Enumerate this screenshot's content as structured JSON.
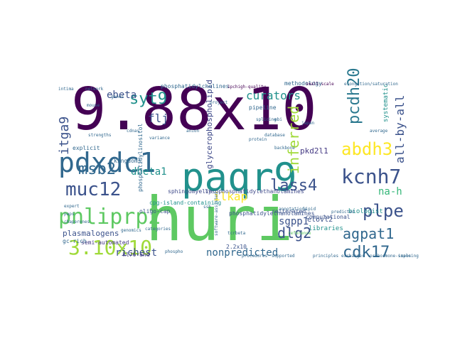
{
  "word_cloud": {
    "words": [
      {
        "text": "9.88x10",
        "color": "#440154"
      },
      {
        "text": "huri",
        "color": "#5ec962"
      },
      {
        "text": "paqr9",
        "color": "#21918c"
      },
      {
        "text": "pdxdc1",
        "color": "#31688e"
      },
      {
        "text": "kcnh7",
        "color": "#3b528b"
      },
      {
        "text": "pnliprp2",
        "color": "#5ec962"
      },
      {
        "text": "abdh3",
        "color": "#fde725"
      },
      {
        "text": "muc12",
        "color": "#3b528b"
      },
      {
        "text": "plpe",
        "color": "#3b528b"
      },
      {
        "text": "agpat1",
        "color": "#31688e"
      },
      {
        "text": "msb2",
        "color": "#31688e"
      },
      {
        "text": "lass4",
        "color": "#3b528b"
      },
      {
        "text": "3.10x10",
        "color": "#a0da39"
      },
      {
        "text": "syt9",
        "color": "#21918c"
      },
      {
        "text": "pcdh20",
        "color": "#2a788e"
      },
      {
        "text": "cdk17",
        "color": "#31688e"
      },
      {
        "text": "all-by-all",
        "color": "#3b528b"
      },
      {
        "text": "curators",
        "color": "#21918c"
      },
      {
        "text": "dlg2",
        "color": "#3b528b"
      },
      {
        "text": "ilkap",
        "color": "#fde725"
      },
      {
        "text": "nonpredicted",
        "color": "#31688e"
      },
      {
        "text": "inferred",
        "color": "#a0da39"
      },
      {
        "text": "richest",
        "color": "#3b528b"
      },
      {
        "text": "dbeta1",
        "color": "#21918c"
      },
      {
        "text": "itga9",
        "color": "#3b528b"
      },
      {
        "text": "ebeta",
        "color": "#3b528b"
      },
      {
        "text": "sgpp1",
        "color": "#3b528b"
      },
      {
        "text": "flj",
        "color": "#3b528b"
      },
      {
        "text": "na-h",
        "color": "#35b779"
      },
      {
        "text": "plasmalogens",
        "color": "#3b528b"
      },
      {
        "text": "glycerophospholipid",
        "color": "#3e4989"
      },
      {
        "text": "pkd2l1",
        "color": "#443983"
      },
      {
        "text": "elovl2",
        "color": "#3b528b"
      },
      {
        "text": "biologist",
        "color": "#21918c"
      },
      {
        "text": "libraries",
        "color": "#21918c"
      },
      {
        "text": "systematic",
        "color": "#21918c"
      },
      {
        "text": "kingdoms",
        "color": "#31688e"
      },
      {
        "text": "explicit",
        "color": "#31688e"
      },
      {
        "text": "oligo-cap",
        "color": "#3b528b"
      },
      {
        "text": "semi-automated",
        "color": "#443983"
      },
      {
        "text": "kl76-and",
        "color": "#443983"
      },
      {
        "text": "2.2x10",
        "color": "#3b528b"
      },
      {
        "text": "reiterated",
        "color": "#3b528b"
      },
      {
        "text": "phosphatidylethanolamines",
        "color": "#3b528b"
      },
      {
        "text": "cpg-island-containing",
        "color": "#21918c"
      },
      {
        "text": "lysophosphatidylethanolamines",
        "color": "#3e4989"
      },
      {
        "text": "phosphatidylinositol",
        "color": "#31688e"
      },
      {
        "text": "computational",
        "color": "#3b528b"
      },
      {
        "text": "sphingomyelin",
        "color": "#3e4989"
      },
      {
        "text": "pipeline",
        "color": "#31688e"
      },
      {
        "text": "methodology",
        "color": "#31688e"
      },
      {
        "text": "elongation/saturation",
        "color": "#31688e"
      },
      {
        "text": "phosphatidylcholines",
        "color": "#31688e"
      },
      {
        "text": "1pchigh-quality",
        "color": "#440154"
      },
      {
        "text": "small-scale",
        "color": "#440154"
      },
      {
        "text": "gc-rich",
        "color": "#31688e"
      },
      {
        "text": "chaperones",
        "color": "#31688e"
      },
      {
        "text": "paps",
        "color": "#31688e"
      },
      {
        "text": "cdnas",
        "color": "#31688e"
      },
      {
        "text": "intima",
        "color": "#31688e"
      },
      {
        "text": "genomics",
        "color": "#31688e"
      },
      {
        "text": "categories",
        "color": "#31688e"
      },
      {
        "text": "procedures",
        "color": "#31688e"
      },
      {
        "text": "supported",
        "color": "#31688e"
      },
      {
        "text": "principles",
        "color": "#31688e"
      },
      {
        "text": "exchanger",
        "color": "#31688e"
      },
      {
        "text": "imposing",
        "color": "#31688e"
      },
      {
        "text": "tcrbeta",
        "color": "#31688e"
      },
      {
        "text": "phospho",
        "color": "#31688e"
      },
      {
        "text": "database",
        "color": "#31688e"
      },
      {
        "text": "japan",
        "color": "#31688e"
      },
      {
        "text": "ssh",
        "color": "#31688e"
      },
      {
        "text": "ebi",
        "color": "#31688e"
      },
      {
        "text": "reference",
        "color": "#5ec962"
      },
      {
        "text": "network",
        "color": "#31688e"
      },
      {
        "text": "expert",
        "color": "#31688e"
      },
      {
        "text": "lipid",
        "color": "#31688e"
      },
      {
        "text": "project",
        "color": "#31688e"
      },
      {
        "text": "software-assisted",
        "color": "#31688e"
      },
      {
        "text": "variance",
        "color": "#31688e"
      },
      {
        "text": "average",
        "color": "#31688e"
      },
      {
        "text": "protein",
        "color": "#31688e"
      },
      {
        "text": "anion",
        "color": "#31688e"
      },
      {
        "text": "mouse",
        "color": "#31688e"
      },
      {
        "text": "genes",
        "color": "#31688e"
      },
      {
        "text": "strengths",
        "color": "#31688e"
      },
      {
        "text": "backbone",
        "color": "#31688e"
      },
      {
        "text": "annotations",
        "color": "#31688e"
      },
      {
        "text": "splicing",
        "color": "#31688e"
      },
      {
        "text": "predicted",
        "color": "#31688e"
      },
      {
        "text": "prohormone-scale",
        "color": "#31688e"
      }
    ]
  }
}
